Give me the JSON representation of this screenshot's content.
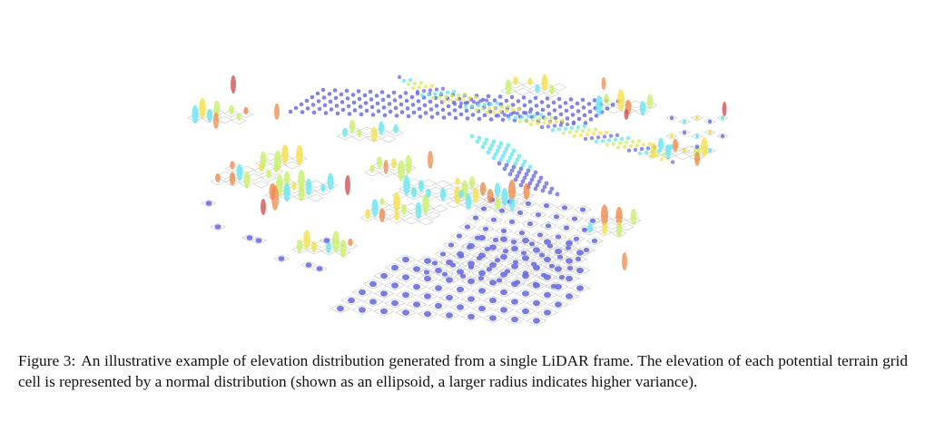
{
  "figure": {
    "label": "Figure 3:",
    "caption": "An illustrative example of elevation distribution generated from a single LiDAR frame.  The elevation of each potential terrain grid cell is represented by a normal distribution (shown as an ellipsoid, a larger radius indicates higher variance).",
    "colors": {
      "low": "#6a6fe0",
      "mid_low": "#66e6f0",
      "mid": "#c8f06a",
      "mid_high": "#f5e04a",
      "high": "#f08a4a",
      "very_high": "#d04848",
      "grid": "#c8c8c8"
    }
  }
}
